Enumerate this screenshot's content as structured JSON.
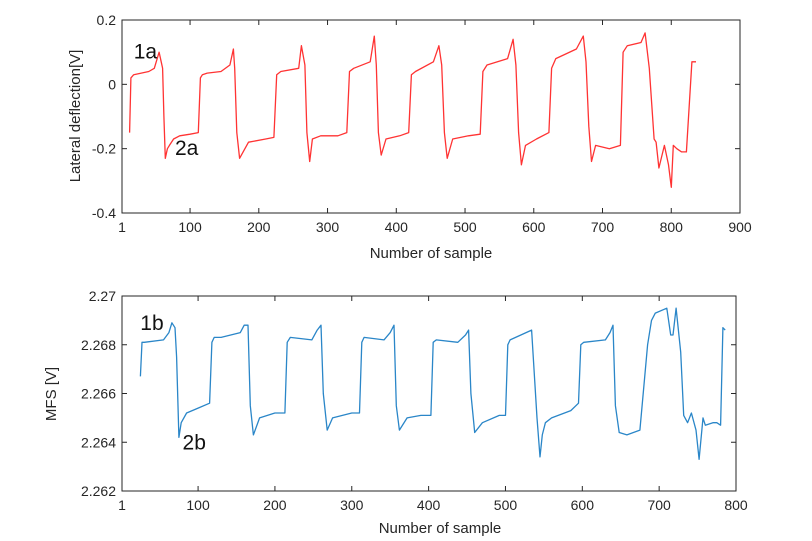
{
  "chart_data": [
    {
      "type": "line",
      "xlabel": "Number of sample",
      "ylabel": "Lateral deflection[V]",
      "xlim": [
        1,
        900
      ],
      "ylim": [
        -0.4,
        0.2
      ],
      "xticks": [
        1,
        100,
        200,
        300,
        400,
        500,
        600,
        700,
        800,
        900
      ],
      "yticks": [
        -0.4,
        -0.2,
        0,
        0.2
      ],
      "xtick_labels": [
        "1",
        "100",
        "200",
        "300",
        "400",
        "500",
        "600",
        "700",
        "800",
        "900"
      ],
      "ytick_labels": [
        "-0.4",
        "-0.2",
        "0",
        "0.2"
      ],
      "grid": false,
      "color": "#ff3333",
      "annotations": [
        {
          "text": "1a",
          "x": 35,
          "y": 0.08
        },
        {
          "text": "2a",
          "x": 95,
          "y": -0.22
        }
      ],
      "series": [
        {
          "x": [
            12,
            14,
            18,
            40,
            48,
            55,
            58,
            60,
            62,
            64,
            67,
            70,
            76,
            85,
            100,
            112,
            115,
            118,
            125,
            145,
            158,
            163,
            165,
            168,
            172,
            185,
            210,
            222,
            226,
            232,
            258,
            262,
            267,
            270,
            274,
            278,
            290,
            315,
            328,
            332,
            338,
            362,
            368,
            371,
            374,
            378,
            385,
            405,
            418,
            422,
            428,
            454,
            462,
            466,
            470,
            474,
            482,
            505,
            522,
            526,
            532,
            562,
            570,
            574,
            578,
            582,
            588,
            604,
            622,
            626,
            632,
            662,
            672,
            676,
            680,
            684,
            690,
            710,
            726,
            730,
            736,
            756,
            762,
            768,
            775,
            778,
            782,
            790,
            796,
            800,
            803,
            808,
            815,
            822,
            830,
            833,
            836
          ],
          "y": [
            -0.15,
            0.02,
            0.03,
            0.04,
            0.05,
            0.1,
            0.07,
            0.05,
            -0.1,
            -0.23,
            -0.2,
            -0.19,
            -0.17,
            -0.16,
            -0.155,
            -0.15,
            0.02,
            0.03,
            0.035,
            0.04,
            0.06,
            0.11,
            0.05,
            -0.15,
            -0.23,
            -0.18,
            -0.17,
            -0.165,
            0.03,
            0.04,
            0.05,
            0.12,
            0.06,
            -0.15,
            -0.24,
            -0.17,
            -0.16,
            -0.16,
            -0.15,
            0.04,
            0.05,
            0.07,
            0.15,
            0.06,
            -0.15,
            -0.22,
            -0.17,
            -0.16,
            -0.15,
            0.03,
            0.04,
            0.07,
            0.12,
            0.06,
            -0.15,
            -0.23,
            -0.17,
            -0.16,
            -0.155,
            0.04,
            0.06,
            0.08,
            0.14,
            0.06,
            -0.15,
            -0.25,
            -0.19,
            -0.17,
            -0.15,
            0.05,
            0.08,
            0.11,
            0.15,
            0.07,
            -0.13,
            -0.24,
            -0.19,
            -0.2,
            -0.19,
            0.1,
            0.12,
            0.13,
            0.16,
            0.05,
            -0.17,
            -0.18,
            -0.26,
            -0.19,
            -0.25,
            -0.32,
            -0.19,
            -0.2,
            -0.21,
            -0.21,
            0.07,
            0.07,
            0.07
          ]
        }
      ]
    },
    {
      "type": "line",
      "xlabel": "Number of sample",
      "ylabel": "MFS [V]",
      "xlim": [
        1,
        800
      ],
      "ylim": [
        2.262,
        2.27
      ],
      "xticks": [
        1,
        100,
        200,
        300,
        400,
        500,
        600,
        700,
        800
      ],
      "yticks": [
        2.262,
        2.264,
        2.266,
        2.268,
        2.27
      ],
      "xtick_labels": [
        "1",
        "100",
        "200",
        "300",
        "400",
        "500",
        "600",
        "700",
        "800"
      ],
      "ytick_labels": [
        "2.262",
        "2.264",
        "2.266",
        "2.268",
        "2.27"
      ],
      "grid": false,
      "color": "#2a86c8",
      "annotations": [
        {
          "text": "1b",
          "x": 40,
          "y": 2.2686
        },
        {
          "text": "2b",
          "x": 95,
          "y": 2.2637
        }
      ],
      "series": [
        {
          "x": [
            25,
            27,
            30,
            55,
            62,
            66,
            70,
            72,
            75,
            78,
            85,
            100,
            115,
            118,
            121,
            130,
            155,
            160,
            165,
            168,
            172,
            180,
            200,
            213,
            216,
            220,
            248,
            255,
            260,
            263,
            268,
            275,
            300,
            310,
            313,
            316,
            342,
            350,
            355,
            358,
            362,
            372,
            390,
            403,
            406,
            410,
            438,
            448,
            452,
            455,
            460,
            470,
            492,
            500,
            503,
            506,
            534,
            541,
            545,
            548,
            552,
            560,
            585,
            595,
            598,
            602,
            630,
            636,
            640,
            643,
            648,
            658,
            675,
            685,
            690,
            695,
            710,
            715,
            718,
            722,
            728,
            732,
            737,
            742,
            748,
            752,
            757,
            760,
            770,
            775,
            780,
            783,
            786
          ],
          "y": [
            2.2667,
            2.2681,
            2.2681,
            2.2682,
            2.2685,
            2.2689,
            2.2687,
            2.2675,
            2.2642,
            2.2648,
            2.2652,
            2.2654,
            2.2656,
            2.2681,
            2.2683,
            2.2683,
            2.2685,
            2.2688,
            2.2688,
            2.2655,
            2.2643,
            2.265,
            2.2652,
            2.2652,
            2.2681,
            2.2683,
            2.2682,
            2.2686,
            2.2688,
            2.266,
            2.2645,
            2.265,
            2.2652,
            2.2652,
            2.2681,
            2.2683,
            2.2682,
            2.2685,
            2.2688,
            2.2655,
            2.2645,
            2.265,
            2.2651,
            2.2651,
            2.2681,
            2.2682,
            2.2681,
            2.2684,
            2.2686,
            2.266,
            2.2644,
            2.2648,
            2.2651,
            2.2651,
            2.268,
            2.2682,
            2.2686,
            2.265,
            2.2634,
            2.2643,
            2.2648,
            2.265,
            2.2653,
            2.2656,
            2.268,
            2.2681,
            2.2682,
            2.2685,
            2.2688,
            2.2655,
            2.2644,
            2.2643,
            2.2645,
            2.268,
            2.269,
            2.2693,
            2.2695,
            2.2684,
            2.2684,
            2.2695,
            2.2677,
            2.2651,
            2.2648,
            2.2652,
            2.2645,
            2.2633,
            2.265,
            2.2647,
            2.2648,
            2.2648,
            2.2647,
            2.2687,
            2.2686
          ]
        }
      ]
    }
  ]
}
